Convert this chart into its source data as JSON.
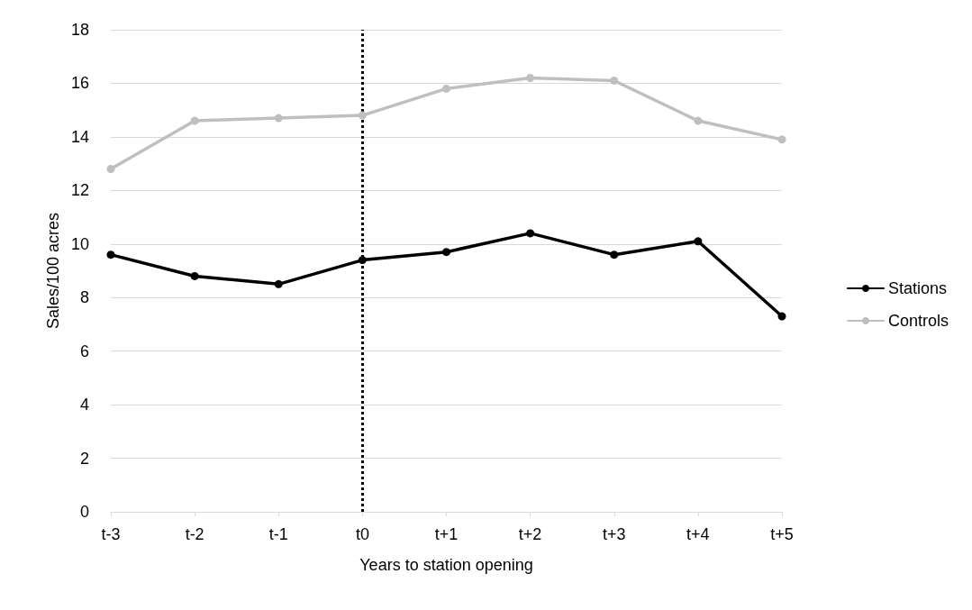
{
  "chart_data": {
    "type": "line",
    "xlabel": "Years to station opening",
    "ylabel": "Sales/100 acres",
    "categories": [
      "t-3",
      "t-2",
      "t-1",
      "t0",
      "t+1",
      "t+2",
      "t+3",
      "t+4",
      "t+5"
    ],
    "series": [
      {
        "name": "Stations",
        "color": "#000000",
        "values": [
          9.6,
          8.8,
          8.5,
          9.4,
          9.7,
          10.4,
          9.6,
          10.1,
          7.3
        ]
      },
      {
        "name": "Controls",
        "color": "#bfbfbf",
        "values": [
          12.8,
          14.6,
          14.7,
          14.8,
          15.8,
          16.2,
          16.1,
          14.6,
          13.9
        ]
      }
    ],
    "ylim": [
      0,
      18
    ],
    "yticks": [
      0,
      2,
      4,
      6,
      8,
      10,
      12,
      14,
      16,
      18
    ],
    "grid": "y",
    "legend": "right",
    "marker": "circle",
    "line_style": "solid",
    "ref_lines": [
      {
        "axis": "x",
        "value": "t0",
        "color": "#000000",
        "line_style": "dotted"
      }
    ]
  }
}
